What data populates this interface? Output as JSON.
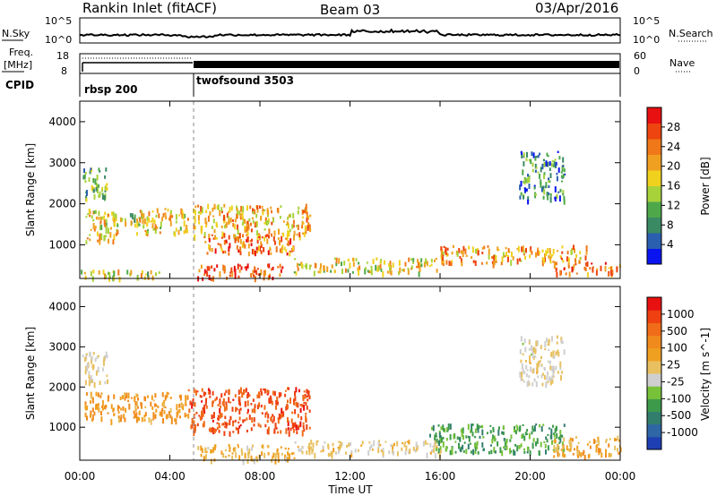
{
  "header": {
    "station": "Rankin Inlet (fitACF)",
    "beam": "Beam 03",
    "date": "03/Apr/2016"
  },
  "top_panels": {
    "nsky_label": "N.Sky",
    "nsearch_label": "N.Search",
    "nsky_ticks": [
      "10^5",
      "10^0"
    ],
    "nsearch_ticks": [
      "10^5",
      "10^0"
    ],
    "freq_label_1": "Freq.",
    "freq_label_2": "[MHz]",
    "freq_ticks": [
      "18",
      "8"
    ],
    "nave_label": "Nave",
    "nave_ticks": [
      "60",
      "0"
    ],
    "cpid_label": "CPID",
    "cpid_segments": [
      {
        "name": "rbsp 200",
        "start_hour": 0,
        "end_hour": 5.0
      },
      {
        "name": "twofsound 3503",
        "start_hour": 5.0,
        "end_hour": 24
      }
    ]
  },
  "axes": {
    "time_label": "Time UT",
    "time_ticks": [
      "00:00",
      "04:00",
      "08:00",
      "12:00",
      "16:00",
      "20:00",
      "00:00"
    ],
    "range_label": "Slant Range [km]",
    "range_ticks": [
      "1000",
      "2000",
      "3000",
      "4000"
    ]
  },
  "colorbars": {
    "power": {
      "label": "Power [dB]",
      "ticks": [
        "28",
        "24",
        "20",
        "16",
        "12",
        "8",
        "4"
      ],
      "colors": [
        "#0a14f0",
        "#2a5fb0",
        "#3a8a64",
        "#4ea84a",
        "#a8d23a",
        "#f0d21e",
        "#f0a020",
        "#f07818",
        "#ee4410",
        "#e81010"
      ]
    },
    "velocity": {
      "label": "Velocity [m s^-1]",
      "ticks": [
        "1000",
        "500",
        "100",
        "25",
        "-25",
        "-100",
        "-500",
        "-1000"
      ],
      "colors": [
        "#1e3fb4",
        "#2e66a6",
        "#327e6e",
        "#3c9a4a",
        "#78c23a",
        "#cfcfcf",
        "#e8c060",
        "#f0a020",
        "#f08a1c",
        "#f06c18",
        "#ee4010",
        "#e81010"
      ]
    }
  },
  "chart_data": [
    {
      "type": "heatmap",
      "title": "Power",
      "xlabel": "Time UT",
      "ylabel": "Slant Range [km]",
      "xlim": [
        0,
        24
      ],
      "ylim": [
        180,
        4500
      ],
      "colorbar_label": "Power [dB]",
      "colorbar_range": [
        0,
        32
      ],
      "regions": [
        {
          "t": [
            0.1,
            1.2
          ],
          "r": [
            2100,
            2900
          ],
          "val": 12
        },
        {
          "t": [
            0.2,
            1.8
          ],
          "r": [
            1100,
            1900
          ],
          "val": 18
        },
        {
          "t": [
            1.5,
            3.2
          ],
          "r": [
            1500,
            1800
          ],
          "val": 14
        },
        {
          "t": [
            2.5,
            4.8
          ],
          "r": [
            1300,
            1900
          ],
          "val": 18
        },
        {
          "t": [
            5.0,
            10.2
          ],
          "r": [
            1200,
            2000
          ],
          "val": 20
        },
        {
          "t": [
            5.5,
            9.5
          ],
          "r": [
            800,
            1300
          ],
          "val": 24
        },
        {
          "t": [
            5.2,
            9.0
          ],
          "r": [
            200,
            550
          ],
          "val": 28
        },
        {
          "t": [
            0.0,
            3.5
          ],
          "r": [
            200,
            400
          ],
          "val": 16
        },
        {
          "t": [
            9.5,
            16.0
          ],
          "r": [
            350,
            700
          ],
          "val": 18
        },
        {
          "t": [
            16.0,
            22.5
          ],
          "r": [
            550,
            1000
          ],
          "val": 22
        },
        {
          "t": [
            21.0,
            24.0
          ],
          "r": [
            300,
            600
          ],
          "val": 24
        },
        {
          "t": [
            19.5,
            21.5
          ],
          "r": [
            2100,
            3300
          ],
          "val": 8
        }
      ]
    },
    {
      "type": "heatmap",
      "title": "Velocity",
      "xlabel": "Time UT",
      "ylabel": "Slant Range [km]",
      "xlim": [
        0,
        24
      ],
      "ylim": [
        180,
        4500
      ],
      "colorbar_label": "Velocity [m s^-1]",
      "colorbar_range": [
        -1000,
        1000
      ],
      "regions": [
        {
          "t": [
            0.1,
            1.2
          ],
          "r": [
            2100,
            2900
          ],
          "val": 0
        },
        {
          "t": [
            0.2,
            4.8
          ],
          "r": [
            1200,
            1900
          ],
          "val": 300
        },
        {
          "t": [
            4.8,
            10.2
          ],
          "r": [
            900,
            2000
          ],
          "val": 700
        },
        {
          "t": [
            5.2,
            9.5
          ],
          "r": [
            200,
            600
          ],
          "val": 150
        },
        {
          "t": [
            9.5,
            16.0
          ],
          "r": [
            350,
            700
          ],
          "val": 60
        },
        {
          "t": [
            15.5,
            21.5
          ],
          "r": [
            400,
            1100
          ],
          "val": -400
        },
        {
          "t": [
            21.0,
            24.0
          ],
          "r": [
            300,
            800
          ],
          "val": 200
        },
        {
          "t": [
            19.5,
            21.5
          ],
          "r": [
            2100,
            3300
          ],
          "val": 0
        }
      ]
    }
  ]
}
